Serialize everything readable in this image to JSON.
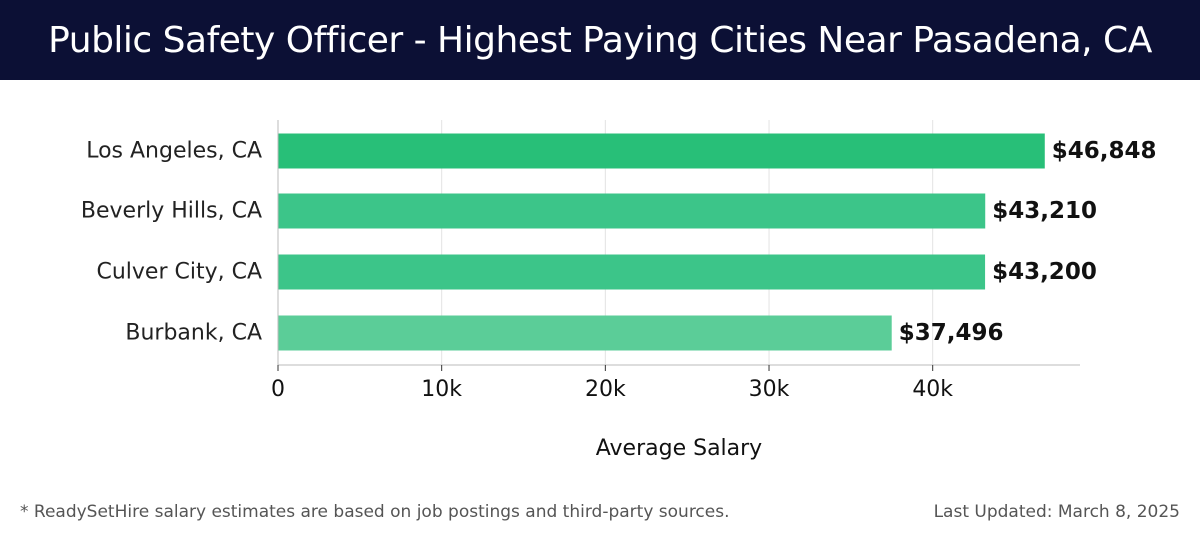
{
  "header": {
    "title": "Public Safety Officer - Highest Paying Cities Near Pasadena, CA"
  },
  "chart_data": {
    "type": "bar",
    "orientation": "horizontal",
    "categories": [
      "Los Angeles, CA",
      "Beverly Hills, CA",
      "Culver City, CA",
      "Burbank, CA"
    ],
    "values": [
      46848,
      43210,
      43200,
      37496
    ],
    "value_labels": [
      "$46,848",
      "$43,210",
      "$43,200",
      "$37,496"
    ],
    "bar_colors": [
      "#28bf78",
      "#3cc589",
      "#3cc589",
      "#5bcd98"
    ],
    "xlabel": "Average Salary",
    "xlim": [
      0,
      49000
    ],
    "x_ticks": [
      0,
      10000,
      20000,
      30000,
      40000
    ],
    "x_tick_labels": [
      "0",
      "10k",
      "20k",
      "30k",
      "40k"
    ],
    "grid": "vertical"
  },
  "footer": {
    "note": "* ReadySetHire salary estimates are based on job postings and third-party sources.",
    "updated": "Last Updated: March 8, 2025"
  }
}
